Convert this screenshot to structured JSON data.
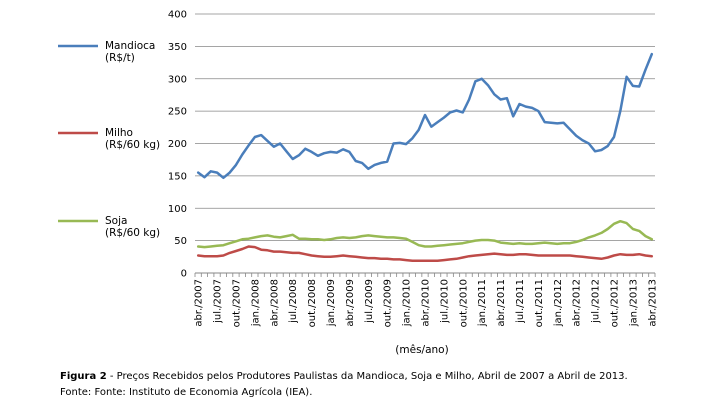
{
  "caption": {
    "figure_label": "Figura 2",
    "figure_text": " - Preços Recebidos pelos Produtores Paulistas da Mandioca, Soja e Milho, Abril de 2007 a Abril de 2013.",
    "source": "Fonte: Fonte: Instituto de Economia Agrícola (IEA)."
  },
  "chart_data": {
    "type": "line",
    "xlabel": "(mês/ano)",
    "ylabel": "",
    "ylim": [
      0,
      400
    ],
    "yticks": [
      0,
      50,
      100,
      150,
      200,
      250,
      300,
      350,
      400
    ],
    "grid": "horizontal",
    "legend_position": "left",
    "x_tick_labels": [
      "abr./2007",
      "jul./2007",
      "out./2007",
      "jan./2008",
      "abr./2008",
      "jul./2008",
      "out./2008",
      "jan./2009",
      "abr./2009",
      "jul./2009",
      "out./2009",
      "jan./2010",
      "abr./2010",
      "jul./2010",
      "out./2010",
      "jan./2011",
      "abr./2011",
      "jul./2011",
      "out./2011",
      "jan./2012",
      "abr./2012",
      "jul./2012",
      "out./2012",
      "jan./2013",
      "abr./2013"
    ],
    "x": [
      "2007-04",
      "2007-05",
      "2007-06",
      "2007-07",
      "2007-08",
      "2007-09",
      "2007-10",
      "2007-11",
      "2007-12",
      "2008-01",
      "2008-02",
      "2008-03",
      "2008-04",
      "2008-05",
      "2008-06",
      "2008-07",
      "2008-08",
      "2008-09",
      "2008-10",
      "2008-11",
      "2008-12",
      "2009-01",
      "2009-02",
      "2009-03",
      "2009-04",
      "2009-05",
      "2009-06",
      "2009-07",
      "2009-08",
      "2009-09",
      "2009-10",
      "2009-11",
      "2009-12",
      "2010-01",
      "2010-02",
      "2010-03",
      "2010-04",
      "2010-05",
      "2010-06",
      "2010-07",
      "2010-08",
      "2010-09",
      "2010-10",
      "2010-11",
      "2010-12",
      "2011-01",
      "2011-02",
      "2011-03",
      "2011-04",
      "2011-05",
      "2011-06",
      "2011-07",
      "2011-08",
      "2011-09",
      "2011-10",
      "2011-11",
      "2011-12",
      "2012-01",
      "2012-02",
      "2012-03",
      "2012-04",
      "2012-05",
      "2012-06",
      "2012-07",
      "2012-08",
      "2012-09",
      "2012-10",
      "2012-11",
      "2012-12",
      "2013-01",
      "2013-02",
      "2013-03",
      "2013-04"
    ],
    "series": [
      {
        "name": "Mandioca",
        "unit": "(R$/t)",
        "color": "#4a7ebb",
        "values": [
          155,
          148,
          157,
          155,
          147,
          155,
          167,
          183,
          197,
          210,
          213,
          204,
          195,
          200,
          188,
          176,
          182,
          192,
          187,
          181,
          185,
          187,
          186,
          191,
          187,
          173,
          170,
          161,
          167,
          170,
          172,
          200,
          201,
          199,
          208,
          221,
          244,
          226,
          233,
          240,
          248,
          251,
          248,
          268,
          296,
          300,
          290,
          276,
          268,
          270,
          242,
          261,
          257,
          255,
          250,
          233,
          232,
          231,
          232,
          222,
          212,
          205,
          200,
          188,
          190,
          196,
          210,
          250,
          303,
          289,
          288,
          314,
          338
        ]
      },
      {
        "name": "Milho",
        "unit": "(R$/60 kg)",
        "color": "#be4b48",
        "values": [
          27,
          26,
          26,
          26,
          27,
          31,
          34,
          37,
          41,
          40,
          36,
          35,
          33,
          33,
          32,
          31,
          31,
          29,
          27,
          26,
          25,
          25,
          26,
          27,
          26,
          25,
          24,
          23,
          23,
          22,
          22,
          21,
          21,
          20,
          19,
          19,
          19,
          19,
          19,
          20,
          21,
          22,
          24,
          26,
          27,
          28,
          29,
          30,
          29,
          28,
          28,
          29,
          29,
          28,
          27,
          27,
          27,
          27,
          27,
          27,
          26,
          25,
          24,
          23,
          22,
          24,
          27,
          29,
          28,
          28,
          29,
          27,
          26
        ]
      },
      {
        "name": "Soja",
        "unit": "(R$/60 kg)",
        "color": "#98b954",
        "values": [
          41,
          40,
          41,
          42,
          43,
          46,
          49,
          52,
          53,
          55,
          57,
          58,
          56,
          55,
          57,
          59,
          53,
          53,
          52,
          52,
          51,
          52,
          54,
          55,
          54,
          55,
          57,
          58,
          57,
          56,
          55,
          55,
          54,
          53,
          48,
          43,
          41,
          41,
          42,
          43,
          44,
          45,
          46,
          48,
          50,
          51,
          51,
          50,
          47,
          46,
          45,
          46,
          45,
          45,
          46,
          47,
          46,
          45,
          46,
          46,
          48,
          51,
          55,
          58,
          62,
          68,
          76,
          80,
          77,
          68,
          65,
          57,
          52
        ]
      }
    ]
  }
}
